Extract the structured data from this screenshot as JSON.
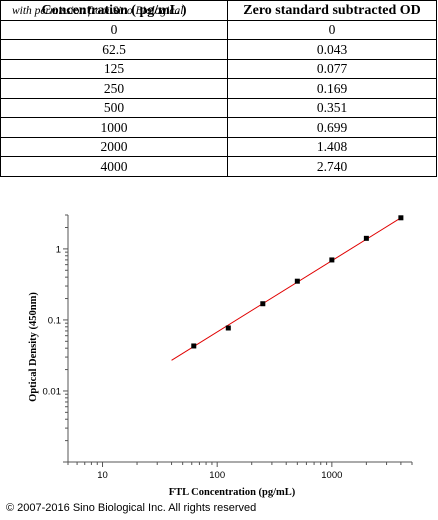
{
  "watermark": "with permission from Sino Biological",
  "table": {
    "headers": [
      "Concentration ( pg/mL )",
      "Zero standard subtracted OD"
    ],
    "rows": [
      [
        "0",
        "0"
      ],
      [
        "62.5",
        "0.043"
      ],
      [
        "125",
        "0.077"
      ],
      [
        "250",
        "0.169"
      ],
      [
        "500",
        "0.351"
      ],
      [
        "1000",
        "0.699"
      ],
      [
        "2000",
        "1.408"
      ],
      [
        "4000",
        "2.740"
      ]
    ]
  },
  "chart_data": {
    "type": "scatter",
    "xlabel": "FTL Concentration (pg/mL)",
    "ylabel": "Optical Density (450nm)",
    "xscale": "log",
    "yscale": "log",
    "xlim": [
      5,
      5000
    ],
    "ylim": [
      0.001,
      3
    ],
    "x_ticks": [
      10,
      100,
      1000
    ],
    "x_tick_labels": [
      "10",
      "100",
      "1000"
    ],
    "y_ticks": [
      0.01,
      0.1,
      1
    ],
    "y_tick_labels": [
      "0.01",
      "0.1",
      "1"
    ],
    "points": [
      {
        "x": 62.5,
        "y": 0.043
      },
      {
        "x": 125,
        "y": 0.077
      },
      {
        "x": 250,
        "y": 0.169
      },
      {
        "x": 500,
        "y": 0.351
      },
      {
        "x": 1000,
        "y": 0.699
      },
      {
        "x": 2000,
        "y": 1.408
      },
      {
        "x": 4000,
        "y": 2.74
      }
    ],
    "fit_line": {
      "x": [
        40,
        4000
      ],
      "y": [
        0.027,
        2.74
      ],
      "color": "#e00000"
    },
    "marker_color": "#000000",
    "grid": false
  },
  "copyright": "© 2007-2016 Sino Biological Inc. All rights reserved"
}
